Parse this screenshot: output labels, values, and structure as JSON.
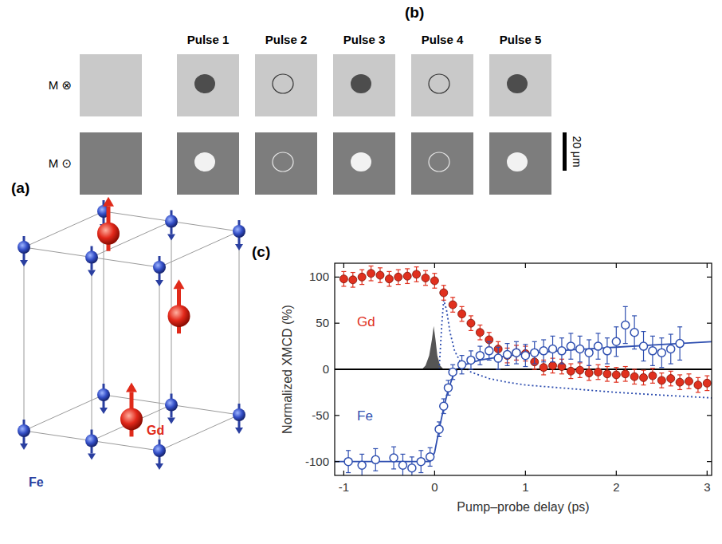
{
  "figure": {
    "panel_labels": [
      "(a)",
      "(b)",
      "(c)"
    ],
    "crystal": {
      "atom_labels": [
        "Fe",
        "Gd"
      ]
    },
    "images": {
      "columns": [
        "Pulse 1",
        "Pulse 2",
        "Pulse 3",
        "Pulse 4",
        "Pulse 5"
      ],
      "rows": [
        "M ⊗",
        "M ⊙"
      ],
      "scale_bar": "20 μm"
    }
  },
  "chart_data": {
    "type": "scatter",
    "xlabel": "Pump–probe delay (ps)",
    "ylabel": "Normalized XMCD (%)",
    "xlim": [
      -1.1,
      3.05
    ],
    "ylim": [
      -115,
      115
    ],
    "xticks": [
      -1,
      0,
      1,
      2,
      3
    ],
    "yticks": [
      -100,
      -50,
      0,
      50,
      100
    ],
    "grid": false,
    "series": [
      {
        "name": "Gd",
        "type": "scatter",
        "color": "#e0301e",
        "marker": "circle",
        "x": [
          -1,
          -0.9,
          -0.8,
          -0.7,
          -0.6,
          -0.5,
          -0.4,
          -0.3,
          -0.2,
          -0.1,
          0,
          0.1,
          0.2,
          0.3,
          0.4,
          0.5,
          0.6,
          0.7,
          0.8,
          0.9,
          1,
          1.1,
          1.2,
          1.3,
          1.4,
          1.5,
          1.6,
          1.7,
          1.8,
          1.9,
          2,
          2.1,
          2.2,
          2.3,
          2.4,
          2.5,
          2.6,
          2.7,
          2.8,
          2.9,
          3
        ],
        "values": [
          98,
          97,
          100,
          104,
          102,
          98,
          100,
          101,
          103,
          99,
          96,
          83,
          70,
          60,
          50,
          40,
          32,
          22,
          15,
          18,
          17,
          8,
          2,
          4,
          3,
          -2,
          -1,
          -4,
          -3,
          -5,
          -6,
          -5,
          -8,
          -9,
          -7,
          -12,
          -10,
          -14,
          -13,
          -17,
          -15
        ],
        "errors": [
          8,
          8,
          8,
          8,
          8,
          8,
          8,
          8,
          8,
          8,
          8,
          8,
          8,
          8,
          8,
          8,
          8,
          8,
          8,
          8,
          8,
          8,
          8,
          8,
          8,
          8,
          8,
          8,
          8,
          8,
          8,
          8,
          8,
          8,
          8,
          8,
          8,
          8,
          8,
          8,
          8
        ]
      },
      {
        "name": "Fe",
        "type": "scatter",
        "color": "#2f4fb0",
        "marker": "open-circle",
        "x": [
          -0.95,
          -0.8,
          -0.65,
          -0.45,
          -0.35,
          -0.25,
          -0.15,
          -0.05,
          0.05,
          0.1,
          0.15,
          0.2,
          0.3,
          0.4,
          0.5,
          0.6,
          0.7,
          0.8,
          0.9,
          1,
          1.1,
          1.2,
          1.3,
          1.4,
          1.5,
          1.6,
          1.7,
          1.8,
          1.9,
          2,
          2.1,
          2.2,
          2.3,
          2.4,
          2.5,
          2.6,
          2.7
        ],
        "values": [
          -100,
          -104,
          -98,
          -96,
          -104,
          -107,
          -100,
          -95,
          -65,
          -40,
          -20,
          -3,
          5,
          10,
          15,
          20,
          12,
          16,
          18,
          15,
          18,
          20,
          22,
          20,
          25,
          22,
          18,
          25,
          20,
          30,
          48,
          40,
          25,
          20,
          18,
          22,
          28
        ],
        "errors": [
          12,
          12,
          12,
          12,
          12,
          12,
          12,
          10,
          8,
          8,
          8,
          8,
          10,
          10,
          10,
          10,
          12,
          12,
          12,
          12,
          12,
          12,
          14,
          14,
          14,
          14,
          14,
          14,
          14,
          16,
          20,
          18,
          16,
          16,
          16,
          16,
          18
        ]
      },
      {
        "type": "line",
        "color": "#2f4fb0",
        "line_style": "solid",
        "x": [
          -1.1,
          -0.05,
          0,
          0.05,
          0.1,
          0.15,
          0.2,
          0.25,
          0.3,
          0.5,
          0.75,
          1,
          1.5,
          2,
          2.5,
          3.05
        ],
        "values": [
          -100,
          -100,
          -90,
          -65,
          -42,
          -22,
          -8,
          0,
          4,
          10,
          14,
          17,
          21,
          24,
          27,
          30
        ]
      },
      {
        "type": "line",
        "color": "#2f4fb0",
        "line_style": "dotted",
        "x": [
          0.05,
          0.08,
          0.1,
          0.13,
          0.17,
          0.22,
          0.3,
          0.4,
          0.6,
          0.8,
          1,
          1.5,
          2,
          2.5,
          3.05
        ],
        "values": [
          0,
          50,
          75,
          65,
          40,
          20,
          5,
          -3,
          -10,
          -14,
          -17,
          -21,
          -25,
          -28,
          -31
        ]
      },
      {
        "type": "area",
        "color": "#555555",
        "x": [
          -0.14,
          -0.1,
          -0.06,
          -0.03,
          -0.01,
          0.01,
          0.03,
          0.06,
          0.1
        ],
        "values": [
          0,
          4,
          15,
          32,
          47,
          32,
          15,
          4,
          0
        ]
      },
      {
        "type": "line",
        "color": "#000000",
        "line_style": "solid",
        "x": [
          -1.1,
          3.05
        ],
        "values": [
          0,
          0
        ]
      }
    ]
  }
}
